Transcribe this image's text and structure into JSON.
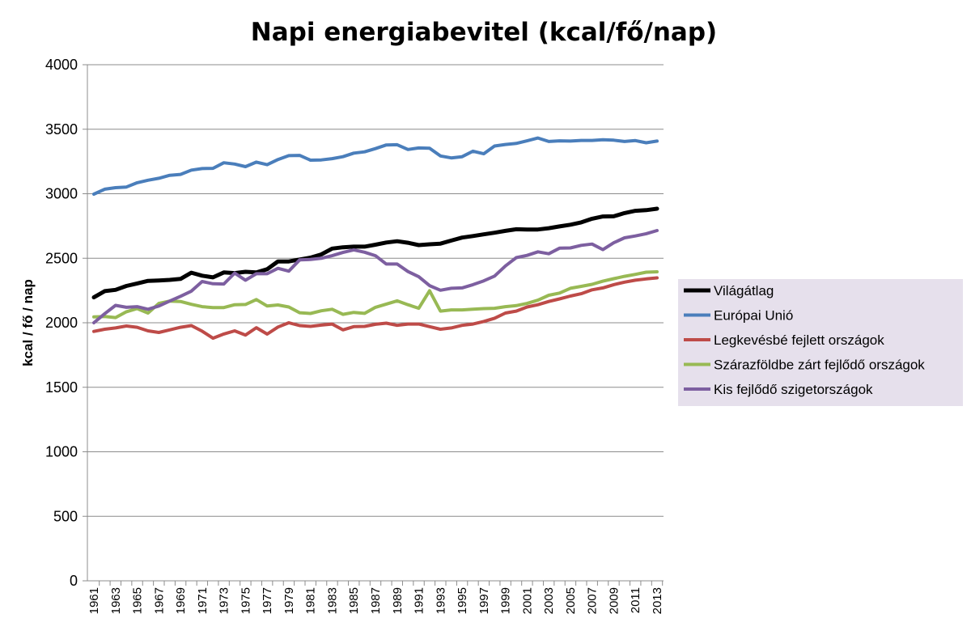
{
  "chart_data": {
    "type": "line",
    "title": "Napi energiabevitel (kcal/fő/nap)",
    "xlabel": "",
    "ylabel": "kcal / fő / nap",
    "ylim": [
      0,
      4000
    ],
    "yticks": [
      "0",
      "500",
      "1000",
      "1500",
      "2000",
      "2500",
      "3000",
      "3500",
      "4000"
    ],
    "grid": "horizontal",
    "legend_position": "right",
    "x": [
      1961,
      1962,
      1963,
      1964,
      1965,
      1966,
      1967,
      1968,
      1969,
      1970,
      1971,
      1972,
      1973,
      1974,
      1975,
      1976,
      1977,
      1978,
      1979,
      1980,
      1981,
      1982,
      1983,
      1984,
      1985,
      1986,
      1987,
      1988,
      1989,
      1990,
      1991,
      1992,
      1993,
      1994,
      1995,
      1996,
      1997,
      1998,
      1999,
      2000,
      2001,
      2002,
      2003,
      2004,
      2005,
      2006,
      2007,
      2008,
      2009,
      2010,
      2011,
      2012,
      2013
    ],
    "xtick_labels": [
      "1961",
      "1963",
      "1965",
      "1967",
      "1969",
      "1971",
      "1973",
      "1975",
      "1977",
      "1979",
      "1981",
      "1983",
      "1985",
      "1987",
      "1989",
      "1991",
      "1993",
      "1995",
      "1997",
      "1999",
      "2001",
      "2003",
      "2005",
      "2007",
      "2009",
      "2011",
      "2013"
    ],
    "series": [
      {
        "name": "Világátlag",
        "color": "#000000",
        "values": [
          2197,
          2245,
          2255,
          2285,
          2305,
          2325,
          2328,
          2332,
          2340,
          2388,
          2365,
          2352,
          2390,
          2385,
          2395,
          2390,
          2415,
          2475,
          2475,
          2490,
          2505,
          2530,
          2575,
          2585,
          2590,
          2590,
          2605,
          2622,
          2632,
          2620,
          2602,
          2608,
          2613,
          2637,
          2660,
          2672,
          2685,
          2698,
          2712,
          2725,
          2723,
          2723,
          2733,
          2747,
          2760,
          2778,
          2806,
          2824,
          2825,
          2850,
          2868,
          2873,
          2884
        ]
      },
      {
        "name": "Európai Unió",
        "color": "#4a7ebb",
        "values": [
          2997,
          3035,
          3047,
          3052,
          3085,
          3105,
          3120,
          3143,
          3150,
          3183,
          3195,
          3197,
          3240,
          3230,
          3210,
          3245,
          3225,
          3265,
          3295,
          3297,
          3260,
          3262,
          3272,
          3287,
          3315,
          3325,
          3350,
          3378,
          3380,
          3343,
          3355,
          3353,
          3293,
          3278,
          3287,
          3330,
          3310,
          3370,
          3382,
          3390,
          3410,
          3432,
          3405,
          3410,
          3408,
          3413,
          3413,
          3418,
          3415,
          3405,
          3412,
          3395,
          3408
        ]
      },
      {
        "name": "Legkevésbé fejlett országok",
        "color": "#be4b48",
        "values": [
          1933,
          1950,
          1960,
          1975,
          1965,
          1937,
          1925,
          1945,
          1965,
          1978,
          1935,
          1880,
          1913,
          1937,
          1905,
          1962,
          1912,
          1967,
          2000,
          1978,
          1972,
          1982,
          1990,
          1945,
          1970,
          1972,
          1988,
          1997,
          1980,
          1990,
          1990,
          1970,
          1950,
          1960,
          1980,
          1990,
          2010,
          2035,
          2075,
          2090,
          2122,
          2140,
          2165,
          2185,
          2207,
          2225,
          2255,
          2270,
          2295,
          2315,
          2330,
          2340,
          2348
        ]
      },
      {
        "name": "Szárazföldbe zárt fejlődő országok",
        "color": "#98b954",
        "values": [
          2045,
          2048,
          2040,
          2085,
          2110,
          2075,
          2150,
          2168,
          2165,
          2143,
          2125,
          2118,
          2118,
          2140,
          2142,
          2180,
          2130,
          2138,
          2122,
          2078,
          2072,
          2093,
          2105,
          2065,
          2080,
          2073,
          2120,
          2145,
          2170,
          2140,
          2112,
          2248,
          2090,
          2100,
          2100,
          2105,
          2110,
          2112,
          2125,
          2133,
          2150,
          2175,
          2213,
          2230,
          2267,
          2282,
          2298,
          2322,
          2342,
          2360,
          2375,
          2392,
          2395
        ]
      },
      {
        "name": "Kis fejlődő szigetországok",
        "color": "#7d5fa0",
        "values": [
          2000,
          2070,
          2135,
          2120,
          2125,
          2105,
          2130,
          2168,
          2205,
          2245,
          2320,
          2302,
          2300,
          2385,
          2330,
          2380,
          2380,
          2422,
          2400,
          2487,
          2490,
          2500,
          2520,
          2545,
          2565,
          2547,
          2520,
          2455,
          2455,
          2397,
          2357,
          2288,
          2252,
          2267,
          2270,
          2295,
          2325,
          2362,
          2440,
          2505,
          2522,
          2550,
          2535,
          2578,
          2580,
          2600,
          2610,
          2567,
          2620,
          2658,
          2673,
          2690,
          2715
        ]
      }
    ]
  }
}
